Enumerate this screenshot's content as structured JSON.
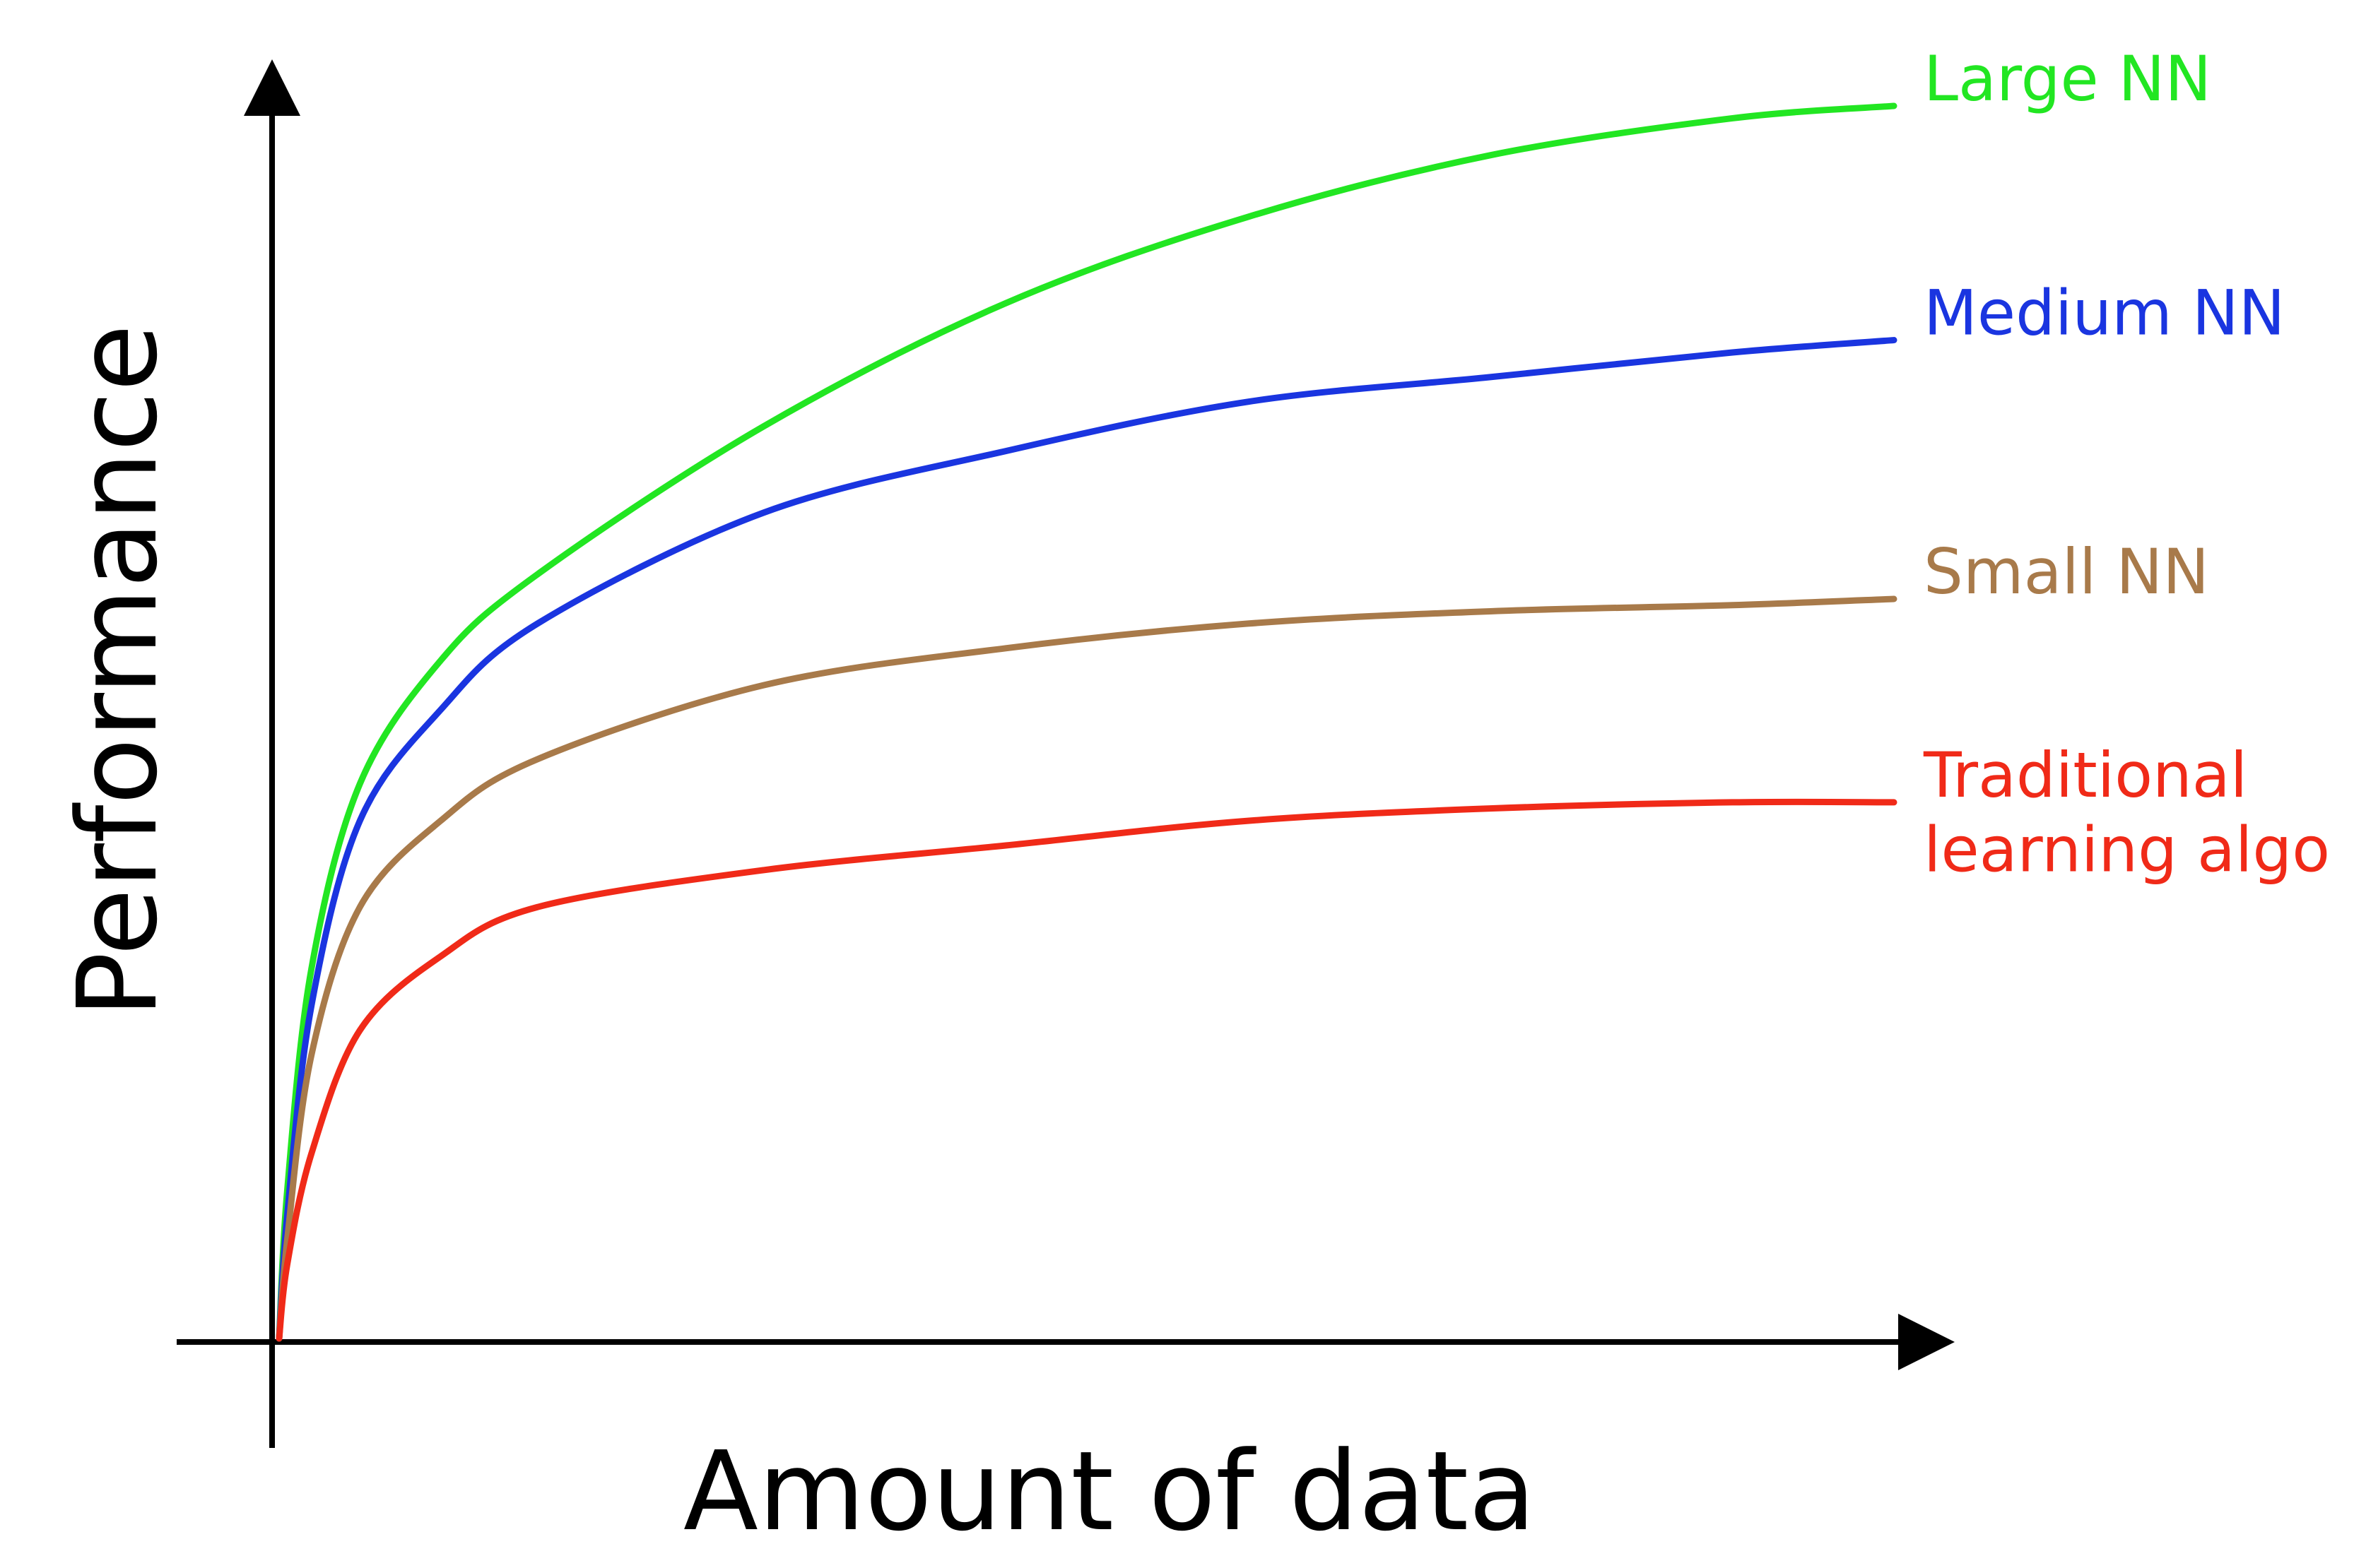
{
  "chart_data": {
    "type": "line",
    "title": "",
    "xlabel": "Amount of data",
    "ylabel": "Performance",
    "xlim": [
      0,
      100
    ],
    "ylim": [
      0,
      100
    ],
    "grid": false,
    "legend": "inline labels at right end of each line",
    "axis_ticks": false,
    "series": [
      {
        "name": "Large NN",
        "label_lines": [
          "Large NN"
        ],
        "color": "#22e622",
        "x": [
          0,
          0.5,
          2,
          5,
          10,
          16,
          30,
          45,
          60,
          75,
          90,
          100
        ],
        "y": [
          0,
          12,
          30,
          45,
          55,
          62,
          74,
          84,
          91,
          96,
          99,
          100
        ]
      },
      {
        "name": "Medium NN",
        "label_lines": [
          "Medium NN"
        ],
        "color": "#1a35e0",
        "x": [
          0,
          0.5,
          2,
          5,
          10,
          16,
          30,
          45,
          60,
          75,
          90,
          100
        ],
        "y": [
          0,
          10,
          27,
          42,
          51,
          58,
          67,
          72,
          76,
          78,
          80,
          81
        ]
      },
      {
        "name": "Small NN",
        "label_lines": [
          "Small NN"
        ],
        "color": "#a87a4a",
        "x": [
          0,
          0.5,
          2,
          5,
          10,
          16,
          30,
          45,
          60,
          75,
          90,
          100
        ],
        "y": [
          0,
          8,
          23,
          35,
          42,
          47,
          53,
          56,
          58,
          59,
          59.5,
          60
        ]
      },
      {
        "name": "Traditional learning algo",
        "label_lines": [
          "Traditional",
          "learning algo"
        ],
        "color": "#f02a18",
        "x": [
          0,
          0.5,
          2,
          5,
          10,
          16,
          30,
          45,
          60,
          75,
          90,
          100
        ],
        "y": [
          0,
          6,
          15,
          25,
          31,
          35,
          38,
          40,
          42,
          43,
          43.5,
          43.5
        ]
      }
    ]
  }
}
